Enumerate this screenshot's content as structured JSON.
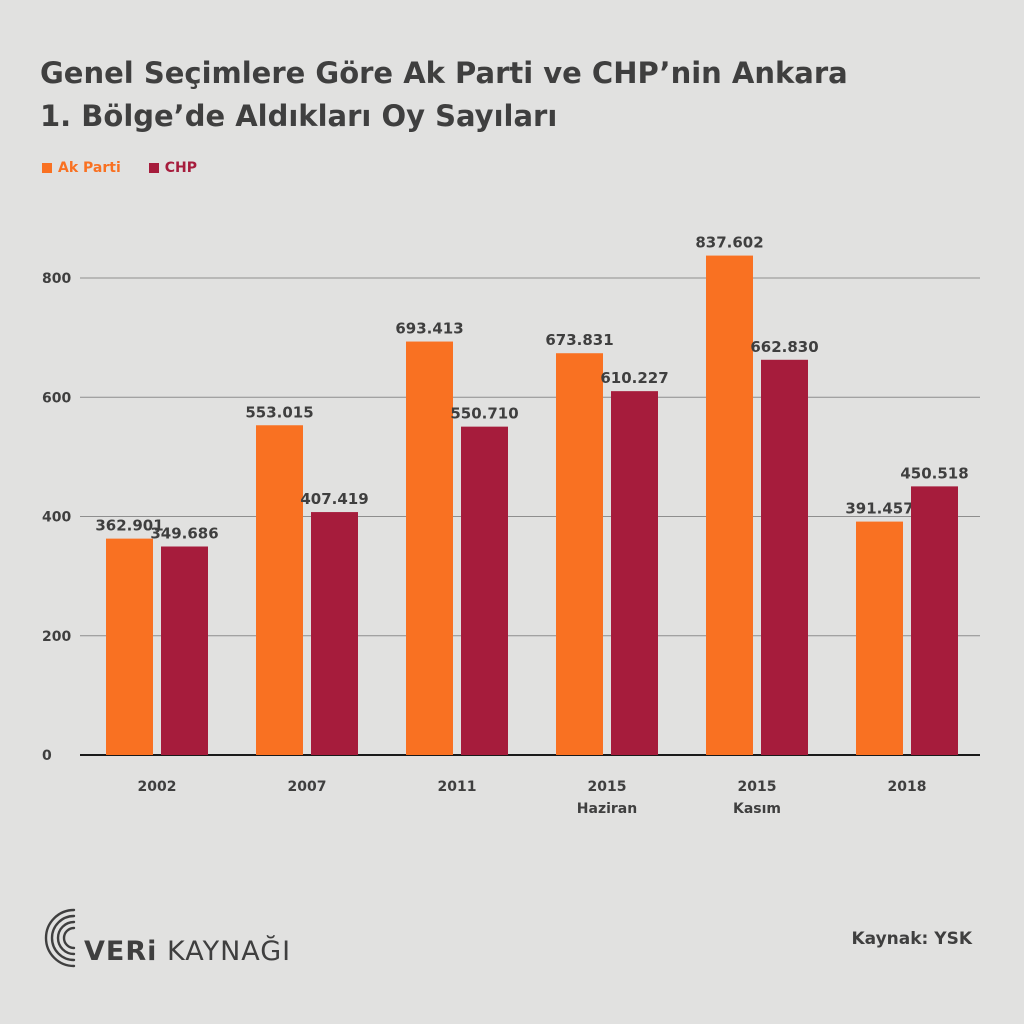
{
  "title_line1": "Genel Seçimlere Göre Ak Parti ve CHP’nin Ankara",
  "title_line2": "1. Bölge’de Aldıkları Oy Sayıları",
  "colors": {
    "ak_parti": "#f97122",
    "chp": "#a61c3c",
    "text": "#3f3f3f",
    "grid": "#8e8e8e",
    "background": "#e1e1e0"
  },
  "legend": [
    {
      "label": "Ak Parti",
      "color": "#f97122"
    },
    {
      "label": "CHP",
      "color": "#a61c3c"
    }
  ],
  "source_text": "Kaynak: YSK",
  "logo": {
    "bold_part": "VERi",
    "rest_part": " KAYNAĞI",
    "icon": "concentric-arcs-logo-icon"
  },
  "chart_data": {
    "type": "bar",
    "title": "Genel Seçimlere Göre Ak Parti ve CHP’nin Ankara 1. Bölge’de Aldıkları Oy Sayıları",
    "categories": [
      {
        "line1": "2002",
        "line2": ""
      },
      {
        "line1": "2007",
        "line2": ""
      },
      {
        "line1": "2011",
        "line2": ""
      },
      {
        "line1": "2015",
        "line2": "Haziran"
      },
      {
        "line1": "2015",
        "line2": "Kasım"
      },
      {
        "line1": "2018",
        "line2": ""
      }
    ],
    "series": [
      {
        "name": "Ak Parti",
        "color": "#f97122",
        "values": [
          362.901,
          553.015,
          693.413,
          673.831,
          837.602,
          391.457
        ],
        "labels": [
          "362.901",
          "553.015",
          "693.413",
          "673.831",
          "837.602",
          "391.457"
        ]
      },
      {
        "name": "CHP",
        "color": "#a61c3c",
        "values": [
          349.686,
          407.419,
          550.71,
          610.227,
          662.83,
          450.518
        ],
        "labels": [
          "349.686",
          "407.419",
          "550.710",
          "610.227",
          "662.830",
          "450.518"
        ]
      }
    ],
    "yticks": [
      0,
      200,
      400,
      600,
      800
    ],
    "ylim": [
      0,
      800
    ],
    "xlabel": "",
    "ylabel": "",
    "grid": true,
    "legend_position": "top-left"
  }
}
